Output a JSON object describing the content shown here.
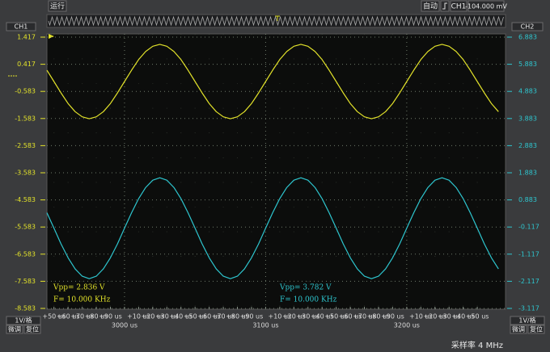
{
  "top_bar": {
    "status": "运行",
    "mode": "自动",
    "trigger_source": "CH1",
    "trigger_level": "-104.000 mV"
  },
  "left_panel": {
    "scale": "1V/格",
    "fine": "微调",
    "reset": "复位"
  },
  "right_panel": {
    "scale": "1V/格",
    "fine": "微调",
    "reset": "复位"
  },
  "sample_rate": "采样率 4 MHz",
  "chart_data": {
    "type": "line",
    "grid": true,
    "x": [
      2945,
      2950,
      2955,
      2960,
      2965,
      2970,
      2975,
      2980,
      2985,
      2990,
      2995,
      3000,
      3005,
      3010,
      3015,
      3020,
      3025,
      3030,
      3035,
      3040,
      3045,
      3050,
      3055,
      3060,
      3065,
      3070,
      3075,
      3080,
      3085,
      3090,
      3095,
      3100,
      3105,
      3110,
      3115,
      3120,
      3125,
      3130,
      3135,
      3140,
      3145,
      3150,
      3155,
      3160,
      3165,
      3170,
      3175,
      3180,
      3185,
      3190,
      3195,
      3200,
      3205,
      3210,
      3215,
      3220,
      3225,
      3230,
      3235,
      3240,
      3245,
      3250,
      3255,
      3260,
      3265
    ],
    "series": [
      {
        "name": "CH1",
        "color": "#e2e22a",
        "values": [
          0.2,
          -0.22,
          -0.64,
          -1.03,
          -1.33,
          -1.52,
          -1.59,
          -1.52,
          -1.33,
          -1.03,
          -0.64,
          -0.22,
          0.2,
          0.59,
          0.89,
          1.08,
          1.15,
          1.08,
          0.89,
          0.59,
          0.2,
          -0.22,
          -0.64,
          -1.03,
          -1.33,
          -1.52,
          -1.59,
          -1.52,
          -1.33,
          -1.03,
          -0.64,
          -0.22,
          0.2,
          0.59,
          0.89,
          1.08,
          1.15,
          1.08,
          0.89,
          0.59,
          0.2,
          -0.22,
          -0.64,
          -1.03,
          -1.33,
          -1.52,
          -1.59,
          -1.52,
          -1.33,
          -1.03,
          -0.64,
          -0.22,
          0.2,
          0.59,
          0.89,
          1.08,
          1.15,
          1.08,
          0.89,
          0.59,
          0.2,
          -0.22,
          -0.64,
          -1.03,
          -1.33
        ]
      },
      {
        "name": "CH2",
        "color": "#2ec6cf",
        "axis": "y2",
        "values": [
          0.41,
          -0.16,
          -0.74,
          -1.25,
          -1.66,
          -1.93,
          -2.02,
          -1.93,
          -1.66,
          -1.25,
          -0.74,
          -0.16,
          0.41,
          0.93,
          1.34,
          1.61,
          1.7,
          1.61,
          1.34,
          0.93,
          0.41,
          -0.16,
          -0.74,
          -1.25,
          -1.66,
          -1.93,
          -2.02,
          -1.93,
          -1.66,
          -1.25,
          -0.74,
          -0.16,
          0.41,
          0.93,
          1.34,
          1.61,
          1.7,
          1.61,
          1.34,
          0.93,
          0.41,
          -0.16,
          -0.74,
          -1.25,
          -1.66,
          -1.93,
          -2.02,
          -1.93,
          -1.66,
          -1.25,
          -0.74,
          -0.16,
          0.41,
          0.93,
          1.34,
          1.61,
          1.7,
          1.61,
          1.34,
          0.93,
          0.41,
          -0.16,
          -0.74,
          -1.25,
          -1.66
        ]
      }
    ],
    "xlim": [
      2945,
      3270
    ],
    "xticks": [
      {
        "value": 2950,
        "label": "+50 us"
      },
      {
        "value": 2960,
        "label": "+60 us"
      },
      {
        "value": 2970,
        "label": "+70 us"
      },
      {
        "value": 2980,
        "label": "+80 us"
      },
      {
        "value": 2990,
        "label": "+90 us"
      },
      {
        "value": 3000,
        "label": "3000 us"
      },
      {
        "value": 3010,
        "label": "+10 us"
      },
      {
        "value": 3020,
        "label": "+20 us"
      },
      {
        "value": 3030,
        "label": "+30 us"
      },
      {
        "value": 3040,
        "label": "+40 us"
      },
      {
        "value": 3050,
        "label": "+50 us"
      },
      {
        "value": 3060,
        "label": "+60 us"
      },
      {
        "value": 3070,
        "label": "+70 us"
      },
      {
        "value": 3080,
        "label": "+80 us"
      },
      {
        "value": 3090,
        "label": "+90 us"
      },
      {
        "value": 3100,
        "label": "3100 us"
      },
      {
        "value": 3110,
        "label": "+10 us"
      },
      {
        "value": 3120,
        "label": "+20 us"
      },
      {
        "value": 3130,
        "label": "+30 us"
      },
      {
        "value": 3140,
        "label": "+40 us"
      },
      {
        "value": 3150,
        "label": "+50 us"
      },
      {
        "value": 3160,
        "label": "+60 us"
      },
      {
        "value": 3170,
        "label": "+70 us"
      },
      {
        "value": 3180,
        "label": "+80 us"
      },
      {
        "value": 3190,
        "label": "+90 us"
      },
      {
        "value": 3200,
        "label": "3200 us"
      },
      {
        "value": 3210,
        "label": "+10 us"
      },
      {
        "value": 3220,
        "label": "+20 us"
      },
      {
        "value": 3230,
        "label": "+30 us"
      },
      {
        "value": 3240,
        "label": "+40 us"
      },
      {
        "value": 3250,
        "label": "+50 us"
      }
    ],
    "ylim": [
      -8.613,
      1.536
    ],
    "yticks": [
      1.417,
      0.417,
      -0.583,
      -1.583,
      -2.583,
      -3.583,
      -4.583,
      -5.583,
      -6.583,
      -7.583,
      -8.583
    ],
    "y2lim": [
      -3.147,
      7.002
    ],
    "y2ticks": [
      6.883,
      5.883,
      4.883,
      3.883,
      2.883,
      1.883,
      0.883,
      -0.117,
      -1.117,
      -2.117,
      -3.117
    ],
    "annotations": [
      "Vpp= 2.836 V",
      "F= 10.000 KHz",
      "Vpp= 3.782 V",
      "F= 10.000 KHz"
    ]
  }
}
